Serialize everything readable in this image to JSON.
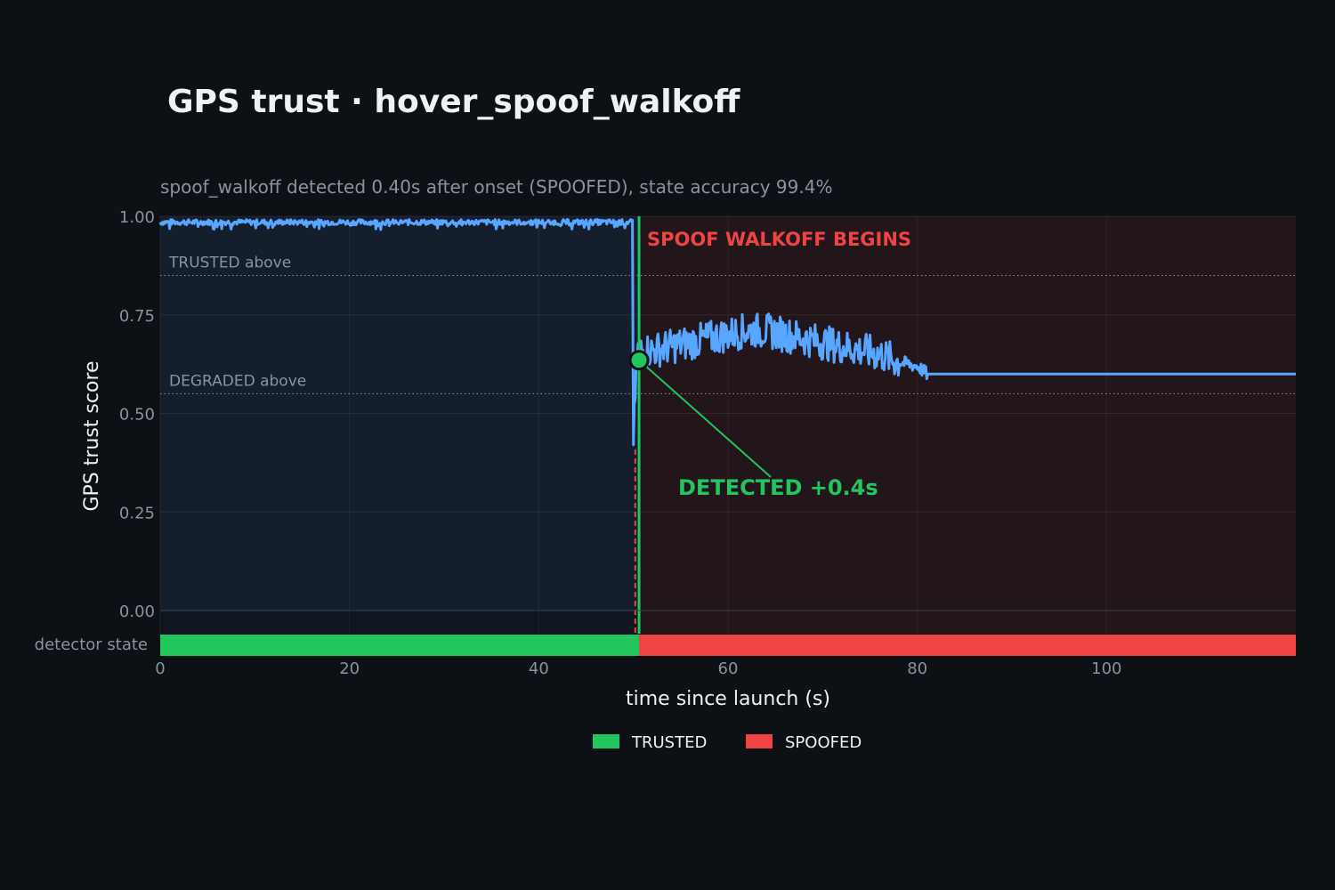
{
  "chart_data": {
    "type": "line",
    "title": "GPS trust  ·  hover_spoof_walkoff",
    "subtitle": "spoof_walkoff detected 0.40s after onset (SPOOFED), state accuracy 99.4%",
    "xlabel": "time since launch (s)",
    "ylabel": "GPS trust score",
    "xlim": [
      0,
      120
    ],
    "ylim": [
      0,
      1
    ],
    "x_ticks": [
      "0",
      "20",
      "40",
      "60",
      "80",
      "100"
    ],
    "y_ticks": [
      "0.00",
      "0.25",
      "0.50",
      "0.75",
      "1.00"
    ],
    "grid": true,
    "thresholds": [
      {
        "label": "TRUSTED above",
        "value": 0.85
      },
      {
        "label": "DEGRADED above",
        "value": 0.55
      }
    ],
    "spoof_onset": 50.2,
    "spoof_label": "SPOOF WALKOFF  BEGINS",
    "detection": {
      "x": 50.6,
      "y": 0.635,
      "label": "DETECTED  +0.4s"
    },
    "series": [
      {
        "name": "GPS trust score",
        "color": "#58a6ff",
        "points": [
          [
            0,
            0.99
          ],
          [
            10,
            0.99
          ],
          [
            20,
            0.99
          ],
          [
            30,
            0.99
          ],
          [
            40,
            0.99
          ],
          [
            49.9,
            0.99
          ],
          [
            50.0,
            0.42
          ],
          [
            50.4,
            0.66
          ],
          [
            52,
            0.66
          ],
          [
            54,
            0.67
          ],
          [
            56,
            0.68
          ],
          [
            58,
            0.69
          ],
          [
            60,
            0.7
          ],
          [
            62,
            0.71
          ],
          [
            64,
            0.71
          ],
          [
            66,
            0.7
          ],
          [
            68,
            0.69
          ],
          [
            70,
            0.68
          ],
          [
            72,
            0.67
          ],
          [
            74,
            0.66
          ],
          [
            76,
            0.65
          ],
          [
            78,
            0.63
          ],
          [
            80,
            0.62
          ],
          [
            81,
            0.6
          ],
          [
            90,
            0.6
          ],
          [
            100,
            0.6
          ],
          [
            110,
            0.6
          ],
          [
            120,
            0.6
          ]
        ]
      }
    ],
    "state_track": {
      "label": "detector state",
      "segments": [
        {
          "state": "TRUSTED",
          "start": 0,
          "end": 50.6,
          "color": "#22c55e"
        },
        {
          "state": "SPOOFED",
          "start": 50.6,
          "end": 120,
          "color": "#ef4444"
        }
      ]
    },
    "legend": [
      {
        "label": "TRUSTED",
        "color": "#22c55e"
      },
      {
        "label": "SPOOFED",
        "color": "#ef4444"
      }
    ],
    "legend_position": "bottom-center"
  }
}
